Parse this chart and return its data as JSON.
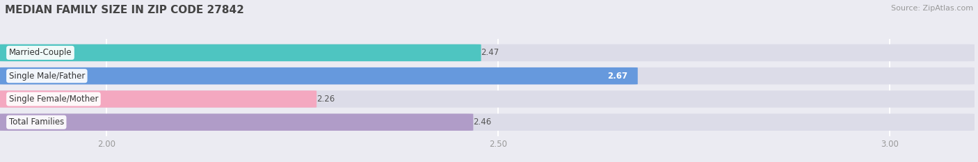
{
  "title": "MEDIAN FAMILY SIZE IN ZIP CODE 27842",
  "source": "Source: ZipAtlas.com",
  "categories": [
    "Married-Couple",
    "Single Male/Father",
    "Single Female/Mother",
    "Total Families"
  ],
  "values": [
    2.47,
    2.67,
    2.26,
    2.46
  ],
  "bar_colors": [
    "#4EC5C1",
    "#6699DD",
    "#F4A8C0",
    "#B09CC8"
  ],
  "bar_label_colors": [
    "#444444",
    "#ffffff",
    "#444444",
    "#444444"
  ],
  "xlim_min": 1.87,
  "xlim_max": 3.1,
  "xstart": 1.87,
  "xticks": [
    2.0,
    2.5,
    3.0
  ],
  "title_fontsize": 11,
  "source_fontsize": 8,
  "label_fontsize": 8.5,
  "value_fontsize": 8.5,
  "bar_height": 0.72,
  "background_color": "#ebebf2",
  "bar_background_color": "#dcdce8",
  "title_color": "#444444",
  "tick_color": "#999999",
  "grid_color": "#ffffff",
  "label_box_color": "#ffffff"
}
